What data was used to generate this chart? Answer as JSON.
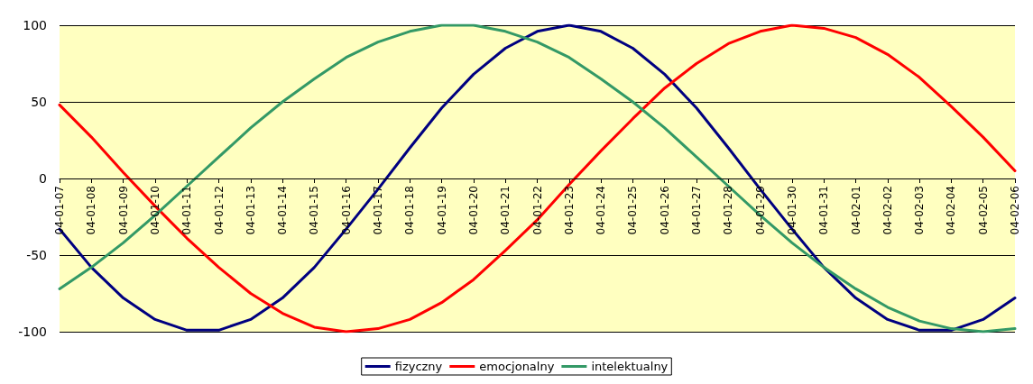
{
  "chart_data": {
    "type": "line",
    "categories": [
      "04-01-07",
      "04-01-08",
      "04-01-09",
      "04-01-10",
      "04-01-11",
      "04-01-12",
      "04-01-13",
      "04-01-14",
      "04-01-15",
      "04-01-16",
      "04-01-17",
      "04-01-18",
      "04-01-19",
      "04-01-20",
      "04-01-21",
      "04-01-22",
      "04-01-23",
      "04-01-24",
      "04-01-25",
      "04-01-26",
      "04-01-27",
      "04-01-28",
      "04-01-29",
      "04-01-30",
      "04-01-31",
      "04-02-01",
      "04-02-02",
      "04-02-03",
      "04-02-04",
      "04-02-05",
      "04-02-06"
    ],
    "series": [
      {
        "name": "fizyczny",
        "color": "#000080",
        "values": [
          -33,
          -58,
          -78,
          -92,
          -99,
          -99,
          -92,
          -78,
          -58,
          -33,
          -7,
          20,
          46,
          68,
          85,
          96,
          100,
          96,
          85,
          68,
          46,
          20,
          -7,
          -33,
          -58,
          -78,
          -92,
          -99,
          -99,
          -92,
          -78
        ]
      },
      {
        "name": "emocjonalny",
        "color": "#ff0000",
        "values": [
          48,
          27,
          4,
          -18,
          -39,
          -58,
          -75,
          -88,
          -97,
          -100,
          -98,
          -92,
          -81,
          -66,
          -47,
          -27,
          -4,
          18,
          39,
          59,
          75,
          88,
          96,
          100,
          98,
          92,
          81,
          66,
          47,
          27,
          5
        ]
      },
      {
        "name": "intelektualny",
        "color": "#339966",
        "values": [
          -72,
          -58,
          -42,
          -24,
          -5,
          14,
          33,
          50,
          65,
          79,
          89,
          96,
          100,
          100,
          96,
          89,
          79,
          65,
          50,
          33,
          14,
          -5,
          -24,
          -42,
          -58,
          -72,
          -84,
          -93,
          -98,
          -100,
          -98
        ]
      }
    ],
    "ylim": [
      -100,
      100
    ],
    "yticks": [
      -100,
      -50,
      0,
      50,
      100
    ],
    "grid": "y",
    "legend": "bottom",
    "marker": "none",
    "line_style": "solid"
  }
}
